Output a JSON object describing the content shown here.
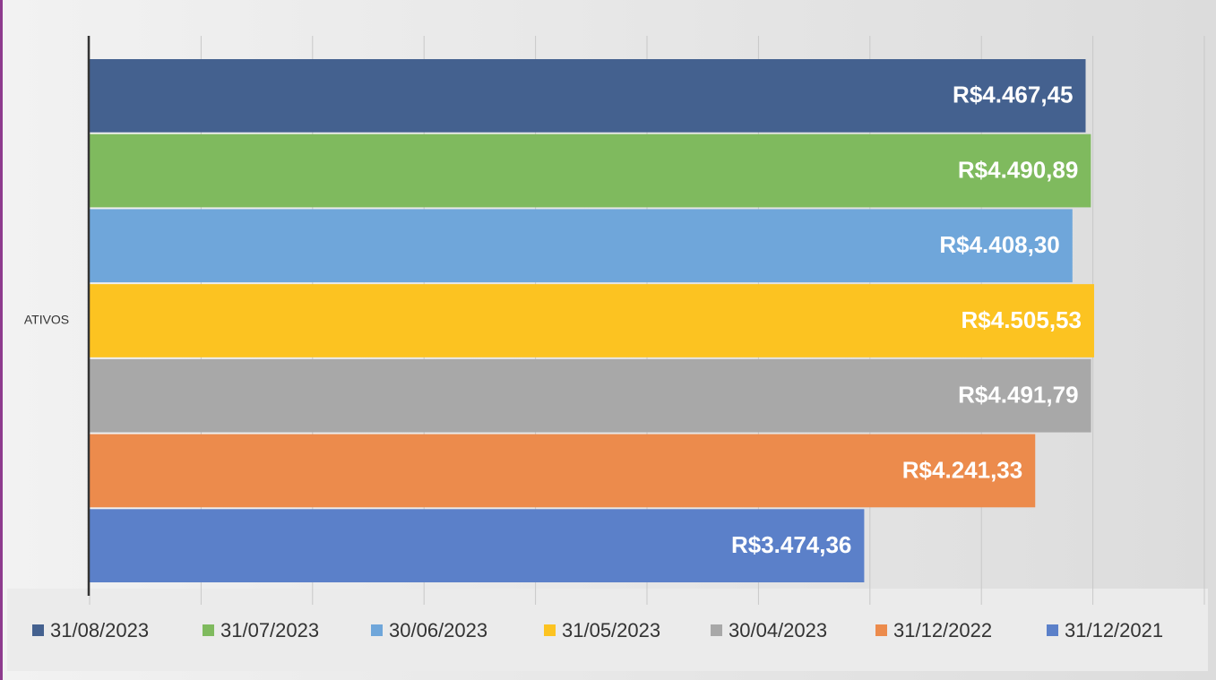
{
  "chart_data": {
    "type": "hbar",
    "categories": [
      "ATIVOS"
    ],
    "xlim": [
      0,
      5000
    ],
    "xticks": [
      0,
      500,
      1000,
      1500,
      2000,
      2500,
      3000,
      3500,
      4000,
      4500,
      5000
    ],
    "grid": true,
    "legend": "bottom",
    "series": [
      {
        "name": "31/08/2023",
        "color": "#44618f",
        "values": [
          4467.45
        ],
        "value_labels": [
          "R$4.467,45"
        ]
      },
      {
        "name": "31/07/2023",
        "color": "#7fba5e",
        "values": [
          4490.89
        ],
        "value_labels": [
          "R$4.490,89"
        ]
      },
      {
        "name": "30/06/2023",
        "color": "#6fa6da",
        "values": [
          4408.3
        ],
        "value_labels": [
          "R$4.408,30"
        ]
      },
      {
        "name": "31/05/2023",
        "color": "#fcc321",
        "values": [
          4505.53
        ],
        "value_labels": [
          "R$4.505,53"
        ]
      },
      {
        "name": "30/04/2023",
        "color": "#a8a8a8",
        "values": [
          4491.79
        ],
        "value_labels": [
          "R$4.491,79"
        ]
      },
      {
        "name": "31/12/2022",
        "color": "#ec8b4c",
        "values": [
          4241.33
        ],
        "value_labels": [
          "R$4.241,33"
        ]
      },
      {
        "name": "31/12/2021",
        "color": "#5b80c9",
        "values": [
          3474.36
        ],
        "value_labels": [
          "R$3.474,36"
        ]
      }
    ]
  }
}
